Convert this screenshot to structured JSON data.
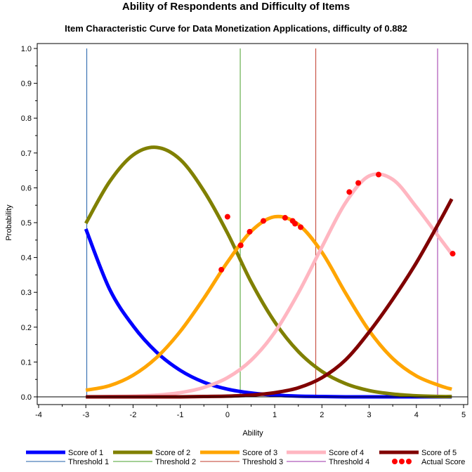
{
  "chart_data": {
    "type": "line",
    "title": "Ability of Respondents and Difficulty of Items",
    "subtitle": "Item Characteristic Curve for Data Monetization Applications, difficulty of 0.882",
    "xlabel": "Ability",
    "ylabel": "Probability",
    "xlim": [
      -4,
      5
    ],
    "ylim": [
      0,
      1
    ],
    "x_ticks": [
      "-4",
      "-3",
      "-2",
      "-1",
      "0",
      "1",
      "2",
      "3",
      "4",
      "5"
    ],
    "y_ticks": [
      "0.0",
      "0.1",
      "0.2",
      "0.3",
      "0.4",
      "0.5",
      "0.6",
      "0.7",
      "0.8",
      "0.9",
      "1.0"
    ],
    "grid": false,
    "legend_position": "bottom",
    "x_range_curves": [
      -3.0,
      4.75
    ],
    "series": [
      {
        "name": "Score of 1",
        "color": "#0000ff",
        "x": [
          -3.0,
          -2.5,
          -2.0,
          -1.5,
          -1.0,
          -0.5,
          0.0,
          0.5,
          1.0,
          1.5,
          2.0,
          2.5,
          3.0,
          3.5,
          4.0,
          4.5,
          4.75
        ],
        "y": [
          0.482,
          0.31,
          0.204,
          0.128,
          0.076,
          0.042,
          0.022,
          0.011,
          0.005,
          0.002,
          0.001,
          0.0,
          0.0,
          0.0,
          0.0,
          0.0,
          0.0
        ]
      },
      {
        "name": "Score of 2",
        "color": "#808000",
        "x": [
          -3.0,
          -2.5,
          -2.0,
          -1.5,
          -1.0,
          -0.5,
          0.0,
          0.5,
          1.0,
          1.5,
          2.0,
          2.5,
          3.0,
          3.5,
          4.0,
          4.5,
          4.75
        ],
        "y": [
          0.498,
          0.617,
          0.694,
          0.716,
          0.681,
          0.591,
          0.47,
          0.33,
          0.215,
          0.13,
          0.073,
          0.038,
          0.018,
          0.008,
          0.003,
          0.001,
          0.001
        ]
      },
      {
        "name": "Score of 3",
        "color": "#ffa500",
        "x": [
          -3.0,
          -2.5,
          -2.0,
          -1.5,
          -1.0,
          -0.5,
          0.0,
          0.5,
          1.0,
          1.5,
          2.0,
          2.5,
          3.0,
          3.5,
          4.0,
          4.5,
          4.75
        ],
        "y": [
          0.019,
          0.032,
          0.062,
          0.113,
          0.188,
          0.283,
          0.387,
          0.475,
          0.517,
          0.495,
          0.415,
          0.298,
          0.19,
          0.11,
          0.06,
          0.032,
          0.022
        ]
      },
      {
        "name": "Score of 4",
        "color": "#ffb6c1",
        "x": [
          -3.0,
          -2.5,
          -2.0,
          -1.5,
          -1.0,
          -0.5,
          0.0,
          0.5,
          1.0,
          1.5,
          2.0,
          2.5,
          3.0,
          3.5,
          4.0,
          4.5,
          4.75
        ],
        "y": [
          0.0,
          0.001,
          0.002,
          0.005,
          0.012,
          0.027,
          0.055,
          0.105,
          0.185,
          0.298,
          0.43,
          0.557,
          0.634,
          0.624,
          0.545,
          0.455,
          0.41
        ]
      },
      {
        "name": "Score of 5",
        "color": "#800000",
        "x": [
          -3.0,
          -2.5,
          -2.0,
          -1.5,
          -1.0,
          -0.5,
          0.0,
          0.5,
          1.0,
          1.5,
          2.0,
          2.5,
          3.0,
          3.5,
          4.0,
          4.5,
          4.75
        ],
        "y": [
          0.0,
          0.0,
          0.0,
          0.0,
          0.0,
          0.001,
          0.002,
          0.005,
          0.012,
          0.026,
          0.055,
          0.106,
          0.186,
          0.28,
          0.385,
          0.505,
          0.568
        ]
      }
    ],
    "thresholds": [
      {
        "name": "Threshold 1",
        "color": "#1f5fa8",
        "x": -2.98
      },
      {
        "name": "Threshold 2",
        "color": "#4aa02c",
        "x": 0.27
      },
      {
        "name": "Threshold 3",
        "color": "#c0392b",
        "x": 1.87
      },
      {
        "name": "Threshold 4",
        "color": "#9b30a8",
        "x": 4.45
      }
    ],
    "actual_scores": {
      "name": "Actual Score",
      "color": "#ff0000",
      "points": [
        {
          "x": -0.13,
          "y": 0.365
        },
        {
          "x": 0.0,
          "y": 0.517
        },
        {
          "x": 0.28,
          "y": 0.435
        },
        {
          "x": 0.47,
          "y": 0.474
        },
        {
          "x": 0.76,
          "y": 0.505
        },
        {
          "x": 1.22,
          "y": 0.514
        },
        {
          "x": 1.38,
          "y": 0.505
        },
        {
          "x": 1.43,
          "y": 0.497
        },
        {
          "x": 1.55,
          "y": 0.487
        },
        {
          "x": 2.58,
          "y": 0.588
        },
        {
          "x": 2.77,
          "y": 0.614
        },
        {
          "x": 3.2,
          "y": 0.638
        },
        {
          "x": 4.77,
          "y": 0.411
        }
      ]
    },
    "legend": [
      {
        "label": "Score of 1",
        "style": "thick",
        "color": "#0000ff"
      },
      {
        "label": "Score of 2",
        "style": "thick",
        "color": "#808000"
      },
      {
        "label": "Score of 3",
        "style": "thick",
        "color": "#ffa500"
      },
      {
        "label": "Score of 4",
        "style": "thick",
        "color": "#ffb6c1"
      },
      {
        "label": "Score of 5",
        "style": "thick",
        "color": "#800000"
      },
      {
        "label": "Threshold 1",
        "style": "thin",
        "color": "#1f5fa8"
      },
      {
        "label": "Threshold 2",
        "style": "thin",
        "color": "#4aa02c"
      },
      {
        "label": "Threshold 3",
        "style": "thin",
        "color": "#c0392b"
      },
      {
        "label": "Threshold 4",
        "style": "thin",
        "color": "#9b30a8"
      },
      {
        "label": "Actual Score",
        "style": "dots",
        "color": "#ff0000"
      }
    ]
  }
}
